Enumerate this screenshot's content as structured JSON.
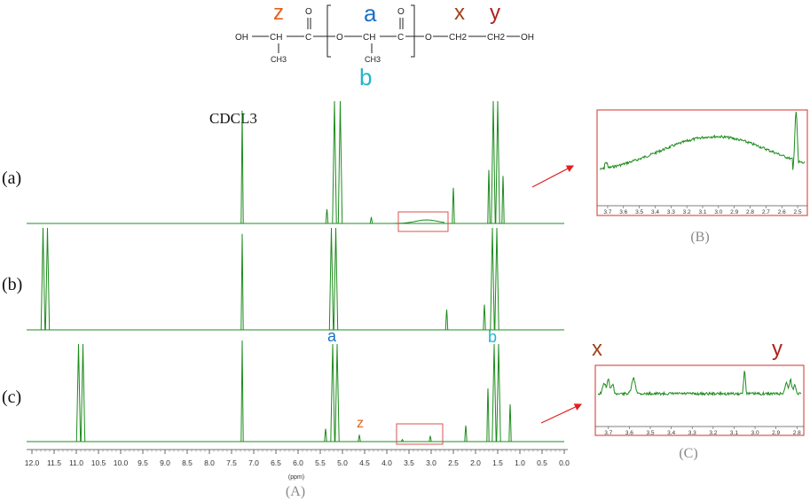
{
  "colors": {
    "spectrum": "#1e8c1e",
    "box": "#d9534f",
    "arrow": "#e02020",
    "z": "#e8601c",
    "a": "#1a6fc4",
    "b": "#24b4c8",
    "x": "#a0401c",
    "y": "#b0201c",
    "axis": "#333333",
    "panel_label": "#888888"
  },
  "structure": {
    "atoms": {
      "oh_left": "OH",
      "ch_z": "CH",
      "ch3_z": "CH3",
      "c_carbonyl1": "C",
      "o_carbonyl1": "O",
      "o_ester1": "O",
      "ch_a": "CH",
      "ch3_b": "CH3",
      "c_carbonyl2": "C",
      "o_carbonyl2": "O",
      "o_ester2": "O",
      "ch2_x": "CH2",
      "ch2_y": "CH2",
      "oh_right": "OH"
    },
    "labels": {
      "z": "z",
      "a": "a",
      "b": "b",
      "x": "x",
      "y": "y"
    }
  },
  "panel_labels": {
    "A": "(A)",
    "B": "(B)",
    "C": "(C)"
  },
  "peak_labels": {
    "cdcl3": "CDCL3",
    "a": "a",
    "b": "b",
    "z": "z",
    "x": "x",
    "y": "y"
  },
  "chart_data": [
    {
      "type": "line",
      "panel": "A",
      "xlabel": "(ppm)",
      "xlim": [
        12.0,
        0.0
      ],
      "x_reversed": true,
      "x_ticks": [
        "12.0",
        "11.5",
        "11.0",
        "10.5",
        "10.0",
        "9.5",
        "9.0",
        "8.5",
        "8.0",
        "7.5",
        "7.0",
        "6.5",
        "6.0",
        "5.5",
        "5.0",
        "4.5",
        "4.0",
        "3.5",
        "3.0",
        "2.5",
        "2.0",
        "1.5",
        "1.0",
        "0.5",
        "0.0"
      ],
      "series": [
        {
          "name": "(a)",
          "peaks_ppm": [
            {
              "ppm": 7.26,
              "rel_height": 0.95
            },
            {
              "ppm": 5.18,
              "rel_height": 1.0,
              "truncated": true
            },
            {
              "ppm": 5.05,
              "rel_height": 1.0,
              "truncated": true
            },
            {
              "ppm": 5.35,
              "rel_height": 0.12
            },
            {
              "ppm": 4.35,
              "rel_height": 0.05
            },
            {
              "ppm": 2.5,
              "rel_height": 0.3
            },
            {
              "ppm": 1.6,
              "rel_height": 1.0,
              "truncated": true
            },
            {
              "ppm": 1.5,
              "rel_height": 1.0,
              "truncated": true
            },
            {
              "ppm": 1.7,
              "rel_height": 0.45
            },
            {
              "ppm": 1.38,
              "rel_height": 0.4
            }
          ]
        },
        {
          "name": "(b)",
          "peaks_ppm": [
            {
              "ppm": 11.75,
              "rel_height": 1.0,
              "truncated": true
            },
            {
              "ppm": 11.65,
              "rel_height": 1.0,
              "truncated": true
            },
            {
              "ppm": 7.26,
              "rel_height": 0.95
            },
            {
              "ppm": 5.25,
              "rel_height": 1.0,
              "truncated": true
            },
            {
              "ppm": 5.15,
              "rel_height": 1.0,
              "truncated": true
            },
            {
              "ppm": 2.65,
              "rel_height": 0.2
            },
            {
              "ppm": 1.62,
              "rel_height": 1.0,
              "truncated": true
            },
            {
              "ppm": 1.52,
              "rel_height": 1.0,
              "truncated": true
            },
            {
              "ppm": 1.8,
              "rel_height": 0.25
            }
          ]
        },
        {
          "name": "(c)",
          "peaks_ppm": [
            {
              "ppm": 10.95,
              "rel_height": 1.0,
              "truncated": true
            },
            {
              "ppm": 10.85,
              "rel_height": 1.0,
              "truncated": true
            },
            {
              "ppm": 7.26,
              "rel_height": 0.95
            },
            {
              "ppm": 5.22,
              "rel_height": 1.0,
              "truncated": true
            },
            {
              "ppm": 5.12,
              "rel_height": 1.0,
              "truncated": true
            },
            {
              "ppm": 5.38,
              "rel_height": 0.12
            },
            {
              "ppm": 4.62,
              "rel_height": 0.06
            },
            {
              "ppm": 3.65,
              "rel_height": 0.02
            },
            {
              "ppm": 3.02,
              "rel_height": 0.05
            },
            {
              "ppm": 2.22,
              "rel_height": 0.15
            },
            {
              "ppm": 1.58,
              "rel_height": 1.0,
              "truncated": true
            },
            {
              "ppm": 1.48,
              "rel_height": 1.0,
              "truncated": true
            },
            {
              "ppm": 1.72,
              "rel_height": 0.5
            },
            {
              "ppm": 1.22,
              "rel_height": 0.35
            }
          ]
        }
      ]
    },
    {
      "type": "line",
      "panel": "B",
      "xlim": [
        3.75,
        2.45
      ],
      "x_reversed": true,
      "x_ticks": [
        "3.7",
        "3.6",
        "3.5",
        "3.4",
        "3.3",
        "3.2",
        "3.1",
        "3.0",
        "2.9",
        "2.8",
        "2.7",
        "2.6",
        "2.5"
      ]
    },
    {
      "type": "line",
      "panel": "C",
      "xlim": [
        3.75,
        2.78
      ],
      "x_reversed": true,
      "x_ticks": [
        "3.7",
        "3.6",
        "3.5",
        "3.4",
        "3.3",
        "3.2",
        "3.1",
        "3.0",
        "2.9",
        "2.8"
      ]
    }
  ]
}
